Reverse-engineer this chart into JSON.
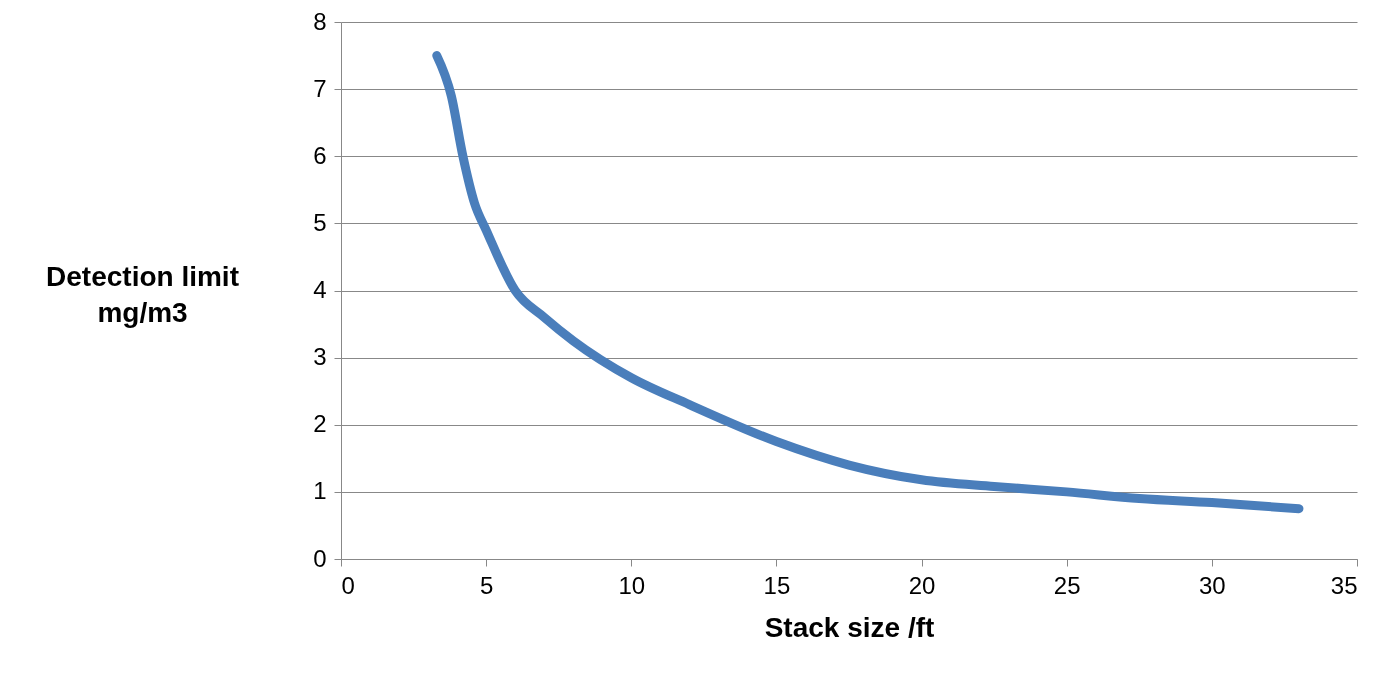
{
  "chart_data": {
    "type": "line",
    "xlabel": "Stack size /ft",
    "ylabel": "Detection limit mg/m3",
    "x": [
      3.3,
      3.8,
      4.2,
      4.6,
      5,
      6,
      7,
      8,
      10,
      12,
      15,
      17.5,
      20,
      22.5,
      25,
      27.5,
      30,
      33
    ],
    "series": [
      {
        "color": "#4a7ebb",
        "values": [
          7.5,
          6.9,
          6.0,
          5.3,
          4.9,
          4.0,
          3.6,
          3.25,
          2.7,
          2.3,
          1.75,
          1.4,
          1.18,
          1.08,
          1.0,
          0.9,
          0.84,
          0.75
        ]
      }
    ],
    "xlim": [
      0,
      35
    ],
    "xticks": [
      0,
      5,
      10,
      15,
      20,
      25,
      30,
      35
    ],
    "ylim": [
      0,
      8
    ],
    "yticks": [
      0,
      1,
      2,
      3,
      4,
      5,
      6,
      7,
      8
    ],
    "grid": "y",
    "marker": "none",
    "line_style": "solid"
  }
}
